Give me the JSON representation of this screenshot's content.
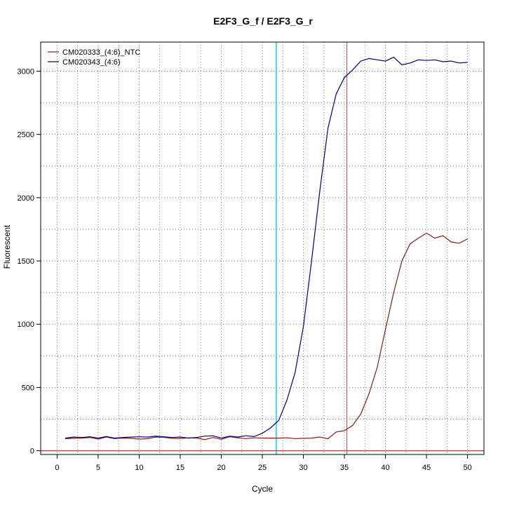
{
  "chart_data": {
    "type": "line",
    "title": "E2F3_G_f / E2F3_G_r",
    "xlabel": "Cycle",
    "ylabel": "Fluorescent",
    "xlim": [
      -2,
      52
    ],
    "ylim": [
      -30,
      3230
    ],
    "x_ticks": [
      0,
      5,
      10,
      15,
      20,
      25,
      30,
      35,
      40,
      45,
      50
    ],
    "y_ticks": [
      0,
      500,
      1000,
      1500,
      2000,
      2500,
      3000
    ],
    "grid": true,
    "legend_position": "top-left",
    "vertical_lines": [
      {
        "x": 26.7,
        "color": "#40e0d0"
      },
      {
        "x": 35.3,
        "color": "#b05050"
      }
    ],
    "horizontal_lines": [
      {
        "y": 0,
        "color": "#b05050"
      }
    ],
    "series": [
      {
        "name": "CM020333_(4:6)_NTC",
        "color": "#8b1a1a",
        "x": [
          1,
          2,
          3,
          4,
          5,
          6,
          7,
          8,
          9,
          10,
          11,
          12,
          13,
          14,
          15,
          16,
          17,
          18,
          19,
          20,
          21,
          22,
          23,
          24,
          25,
          26,
          27,
          28,
          29,
          30,
          31,
          32,
          33,
          34,
          35,
          36,
          37,
          38,
          39,
          40,
          41,
          42,
          43,
          44,
          45,
          46,
          47,
          48,
          49,
          50
        ],
        "values": [
          95,
          98,
          100,
          105,
          92,
          108,
          96,
          100,
          98,
          92,
          95,
          108,
          106,
          98,
          96,
          102,
          100,
          88,
          105,
          90,
          110,
          102,
          96,
          102,
          100,
          100,
          100,
          102,
          96,
          98,
          100,
          108,
          95,
          148,
          158,
          200,
          290,
          450,
          660,
          960,
          1250,
          1500,
          1635,
          1680,
          1720,
          1680,
          1700,
          1650,
          1640,
          1675
        ]
      },
      {
        "name": "CM020343_(4:6)",
        "color": "#00007a",
        "x": [
          1,
          2,
          3,
          4,
          5,
          6,
          7,
          8,
          9,
          10,
          11,
          12,
          13,
          14,
          15,
          16,
          17,
          18,
          19,
          20,
          21,
          22,
          23,
          24,
          25,
          26,
          27,
          28,
          29,
          30,
          31,
          32,
          33,
          34,
          35,
          36,
          37,
          38,
          39,
          40,
          41,
          42,
          43,
          44,
          45,
          46,
          47,
          48,
          49,
          50
        ],
        "values": [
          100,
          108,
          105,
          110,
          100,
          112,
          100,
          105,
          108,
          110,
          108,
          115,
          110,
          105,
          108,
          100,
          105,
          115,
          118,
          100,
          115,
          108,
          118,
          112,
          138,
          180,
          240,
          400,
          620,
          980,
          1500,
          2050,
          2550,
          2820,
          2950,
          3010,
          3080,
          3100,
          3090,
          3080,
          3110,
          3050,
          3065,
          3090,
          3085,
          3090,
          3075,
          3080,
          3065,
          3070
        ]
      }
    ]
  }
}
